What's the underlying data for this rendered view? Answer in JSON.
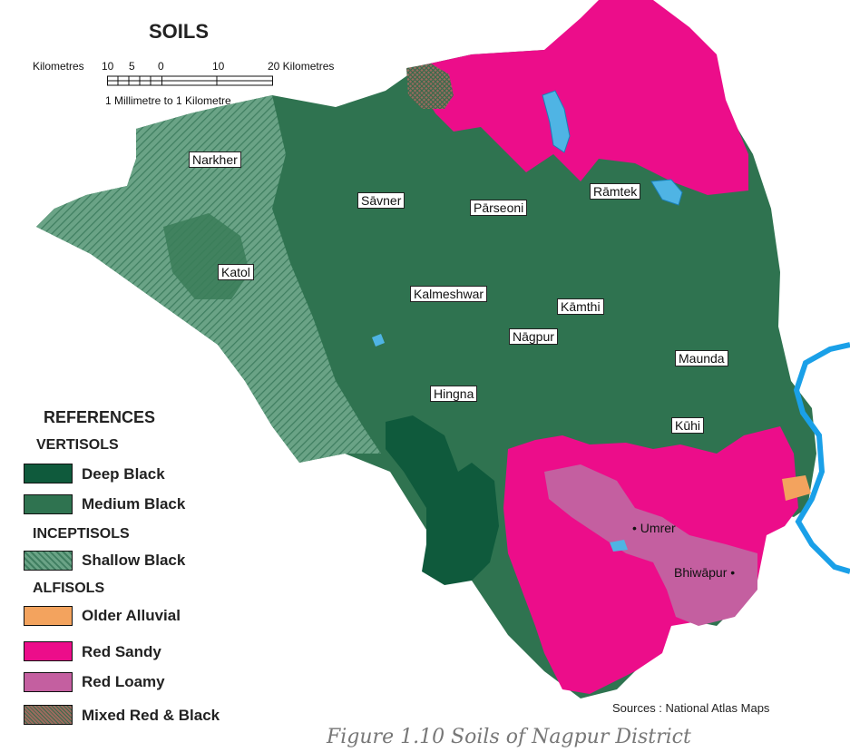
{
  "title": "SOILS",
  "scale": {
    "left_label": "Kilometres",
    "ticks": [
      "10",
      "5",
      "0",
      "10",
      "20 Kilometres"
    ],
    "ratio": "1 Millimetre to 1 Kilometre"
  },
  "places": {
    "narkher": "Narkher",
    "savner": "Sāvner",
    "parseoni": "Pārseoni",
    "ramtek": "Rāmtek",
    "katol": "Katol",
    "kalmeshwar": "Kalmeshwar",
    "kamthi": "Kāmthi",
    "nagpur": "Nāgpur",
    "maunda": "Maunda",
    "hingna": "Hingna",
    "kuhi": "Kūhi",
    "umrer": "• Umrer",
    "bhiwapur": "Bhiwāpur •"
  },
  "references": {
    "heading": "REFERENCES",
    "vertisols": "VERTISOLS",
    "deep_black": "Deep Black",
    "medium_black": "Medium Black",
    "inceptisols": "INCEPTISOLS",
    "shallow_black": "Shallow Black",
    "alfisols": "ALFISOLS",
    "older_alluvial": "Older Alluvial",
    "red_sandy": "Red Sandy",
    "red_loamy": "Red Loamy",
    "mixed": "Mixed Red & Black"
  },
  "colors": {
    "deep_black": "#0f5a3c",
    "medium_black": "#2f7350",
    "shallow_black": "#5f9a7e",
    "older_alluvial": "#f3a35e",
    "red_sandy": "#ec0d8a",
    "red_loamy": "#c45fa0",
    "mixed": "#8b6b60",
    "water": "#4fb4e4",
    "river": "#1aa0e8"
  },
  "sources": "Sources : National Atlas Maps",
  "caption": "Figure 1.10 Soils of Nagpur District"
}
